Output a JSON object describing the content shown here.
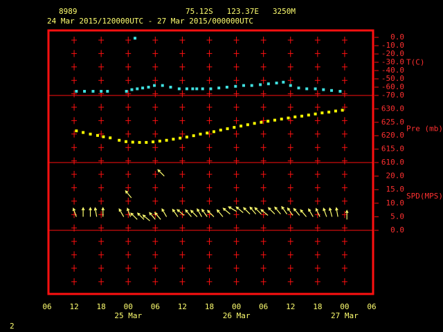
{
  "header": {
    "station": "8989",
    "location": "75.12S   123.37E   3250M",
    "period": "24 Mar 2015/120000UTC - 27 Mar 2015/000000UTC"
  },
  "page_number": "2",
  "x_axis": {
    "xlim": [
      6,
      78
    ],
    "xticks": [
      {
        "value": 6,
        "label": "06"
      },
      12,
      18,
      {
        "value": 24,
        "label": "00"
      },
      {
        "value": 30,
        "label": "06"
      },
      {
        "value": 36,
        "label": "12"
      },
      {
        "value": 42,
        "label": "18"
      },
      {
        "value": 48,
        "label": "00"
      },
      {
        "value": 54,
        "label": "06"
      },
      {
        "value": 60,
        "label": "12"
      },
      {
        "value": 66,
        "label": "18"
      },
      {
        "value": 72,
        "label": "00"
      },
      {
        "value": 78,
        "label": "06"
      }
    ],
    "date_labels": [
      {
        "value": 24,
        "label": "25 Mar"
      },
      {
        "value": 48,
        "label": "26 Mar"
      },
      {
        "value": 72,
        "label": "27 Mar"
      }
    ]
  },
  "chart_data": [
    {
      "type": "scatter",
      "y_label": "T(C)",
      "ylim": [
        -70,
        9.2
      ],
      "yticks": [
        {
          "value": 0,
          "label": "0.0"
        },
        {
          "value": -10,
          "label": "-10.0"
        },
        {
          "value": -20,
          "label": "-20.0"
        },
        {
          "value": -30,
          "label": "-30.0"
        },
        {
          "value": -40,
          "label": "-40.0"
        },
        {
          "value": -50,
          "label": "-50.0"
        },
        {
          "value": -60,
          "label": "-60.0"
        },
        {
          "value": -70,
          "label": "-70.0"
        }
      ],
      "x": [
        12.5,
        14.3,
        16.2,
        18,
        19.4,
        23.6,
        24.8,
        25.5,
        26,
        27.2,
        28.5,
        29.8,
        31.6,
        33.4,
        35.3,
        37,
        38.3,
        39.2,
        40.5,
        42.3,
        44.1,
        45.9,
        47.8,
        49.6,
        51.4,
        53.3,
        55.1,
        56.9,
        58.4,
        60,
        61.8,
        63.6,
        65.5,
        67.3,
        69.1,
        71
      ],
      "series": [
        {
          "color": "#40e0e0",
          "values": [
            -65,
            -65,
            -65,
            -65,
            -65,
            -65,
            -63,
            -1,
            -62,
            -61,
            -60,
            -58,
            -58,
            -60,
            -62,
            -62,
            -62,
            -62,
            -62,
            -62,
            -61,
            -60,
            -59,
            -58,
            -58,
            -57,
            -56,
            -55,
            -54,
            -58,
            -61,
            -62,
            -62,
            -63,
            -64,
            -65
          ]
        }
      ]
    },
    {
      "type": "scatter",
      "y_label": "Pre (mb)",
      "ylim": [
        610,
        635
      ],
      "yticks": [
        {
          "value": 630,
          "label": "630.0"
        },
        {
          "value": 625,
          "label": "625.0"
        },
        {
          "value": 620,
          "label": "620.0"
        },
        {
          "value": 615,
          "label": "615.0"
        },
        {
          "value": 610,
          "label": "610.0"
        }
      ],
      "x": [
        12.5,
        14,
        15.6,
        17.2,
        18.5,
        20,
        22,
        23.5,
        25,
        26.5,
        28,
        29.5,
        31,
        32.5,
        34,
        35.5,
        37,
        38.5,
        40,
        41.5,
        43,
        44.5,
        46,
        47.5,
        49,
        50.5,
        52,
        53.5,
        55,
        56.5,
        58,
        59.5,
        61,
        62.5,
        64,
        65.5,
        67,
        68.5,
        70,
        71.5
      ],
      "series": [
        {
          "color": "#ffff00",
          "values": [
            621.8,
            621.2,
            620.6,
            620.1,
            619.6,
            619.2,
            618.3,
            617.8,
            617.6,
            617.5,
            617.5,
            617.7,
            618,
            618.3,
            618.7,
            619.1,
            619.5,
            620,
            620.6,
            621,
            621.5,
            622.1,
            622.6,
            623.1,
            623.6,
            624.1,
            624.6,
            625,
            625.4,
            625.8,
            626.2,
            626.6,
            627,
            627.3,
            627.7,
            628.1,
            628.5,
            628.8,
            629.2,
            629.5
          ]
        }
      ]
    },
    {
      "type": "wind",
      "y_label": "SPD(MPS)",
      "ylim": [
        0,
        25
      ],
      "yticks": [
        {
          "value": 20,
          "label": "20.0"
        },
        {
          "value": 15,
          "label": "15.0"
        },
        {
          "value": 10,
          "label": "10.0"
        },
        {
          "value": 5,
          "label": "5.0"
        },
        {
          "value": 0,
          "label": "0.0"
        }
      ],
      "x": [
        12.5,
        14,
        15.6,
        17,
        18.4,
        23,
        24.5,
        24.7,
        26,
        27.5,
        28.8,
        30,
        31.2,
        32,
        32.5,
        35,
        36.4,
        38,
        39.3,
        40.3,
        41.5,
        43,
        45,
        46.6,
        48,
        49.5,
        51,
        52.3,
        53.5,
        55,
        56.5,
        57.8,
        59.2,
        60.5,
        62,
        63.5,
        65,
        66.5,
        68,
        69.2,
        70.5,
        72.5
      ],
      "series": [
        {
          "color": "#ffff70",
          "values": [
            5,
            5,
            5,
            5,
            5,
            5,
            5,
            12,
            4,
            4,
            3.5,
            4,
            4,
            20,
            5,
            5,
            5.5,
            5,
            5,
            5,
            5,
            5,
            5,
            6,
            7,
            6.5,
            6,
            6,
            6,
            5.5,
            6,
            6,
            6,
            5.5,
            5.5,
            5,
            5,
            5,
            5,
            5,
            5,
            4
          ],
          "direction": [
            -20,
            0,
            0,
            -10,
            0,
            -30,
            -20,
            -40,
            -45,
            -45,
            -50,
            -40,
            -40,
            -45,
            -30,
            -35,
            -50,
            -40,
            -45,
            -30,
            -35,
            -45,
            -40,
            -50,
            -60,
            -50,
            -45,
            -40,
            -45,
            -50,
            -45,
            -40,
            -35,
            -35,
            -40,
            -40,
            -30,
            -25,
            -20,
            -15,
            -10,
            0
          ]
        }
      ]
    }
  ]
}
